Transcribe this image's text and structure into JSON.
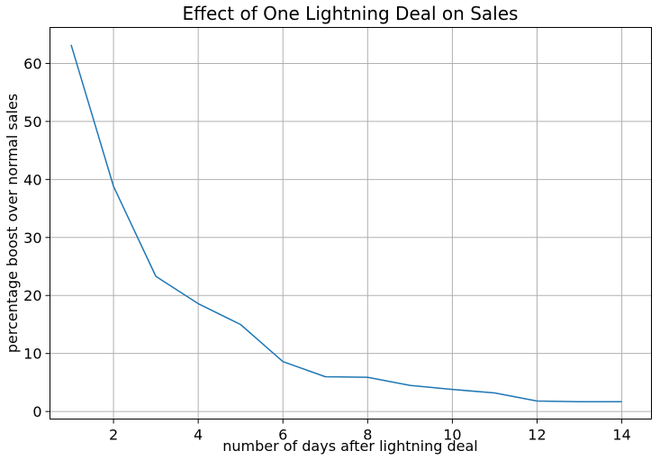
{
  "chart_data": {
    "type": "line",
    "title": "Effect of One Lightning Deal on Sales",
    "xlabel": "number of days after lightning deal",
    "ylabel": "percentage boost over normal sales",
    "xlim": [
      0.5,
      14.7
    ],
    "ylim": [
      -1.3,
      66.2
    ],
    "xticks": [
      2,
      4,
      6,
      8,
      10,
      12,
      14
    ],
    "yticks": [
      0,
      10,
      20,
      30,
      40,
      50,
      60
    ],
    "grid": true,
    "legend": "none",
    "series": [
      {
        "color": "#1f77b4",
        "x": [
          1,
          2,
          3,
          4,
          5,
          6,
          7,
          8,
          9,
          10,
          11,
          12,
          13,
          14
        ],
        "y": [
          63.2,
          38.8,
          23.3,
          18.6,
          15.0,
          8.6,
          6.0,
          5.9,
          4.5,
          3.8,
          3.2,
          1.8,
          1.7,
          1.7
        ]
      }
    ]
  }
}
